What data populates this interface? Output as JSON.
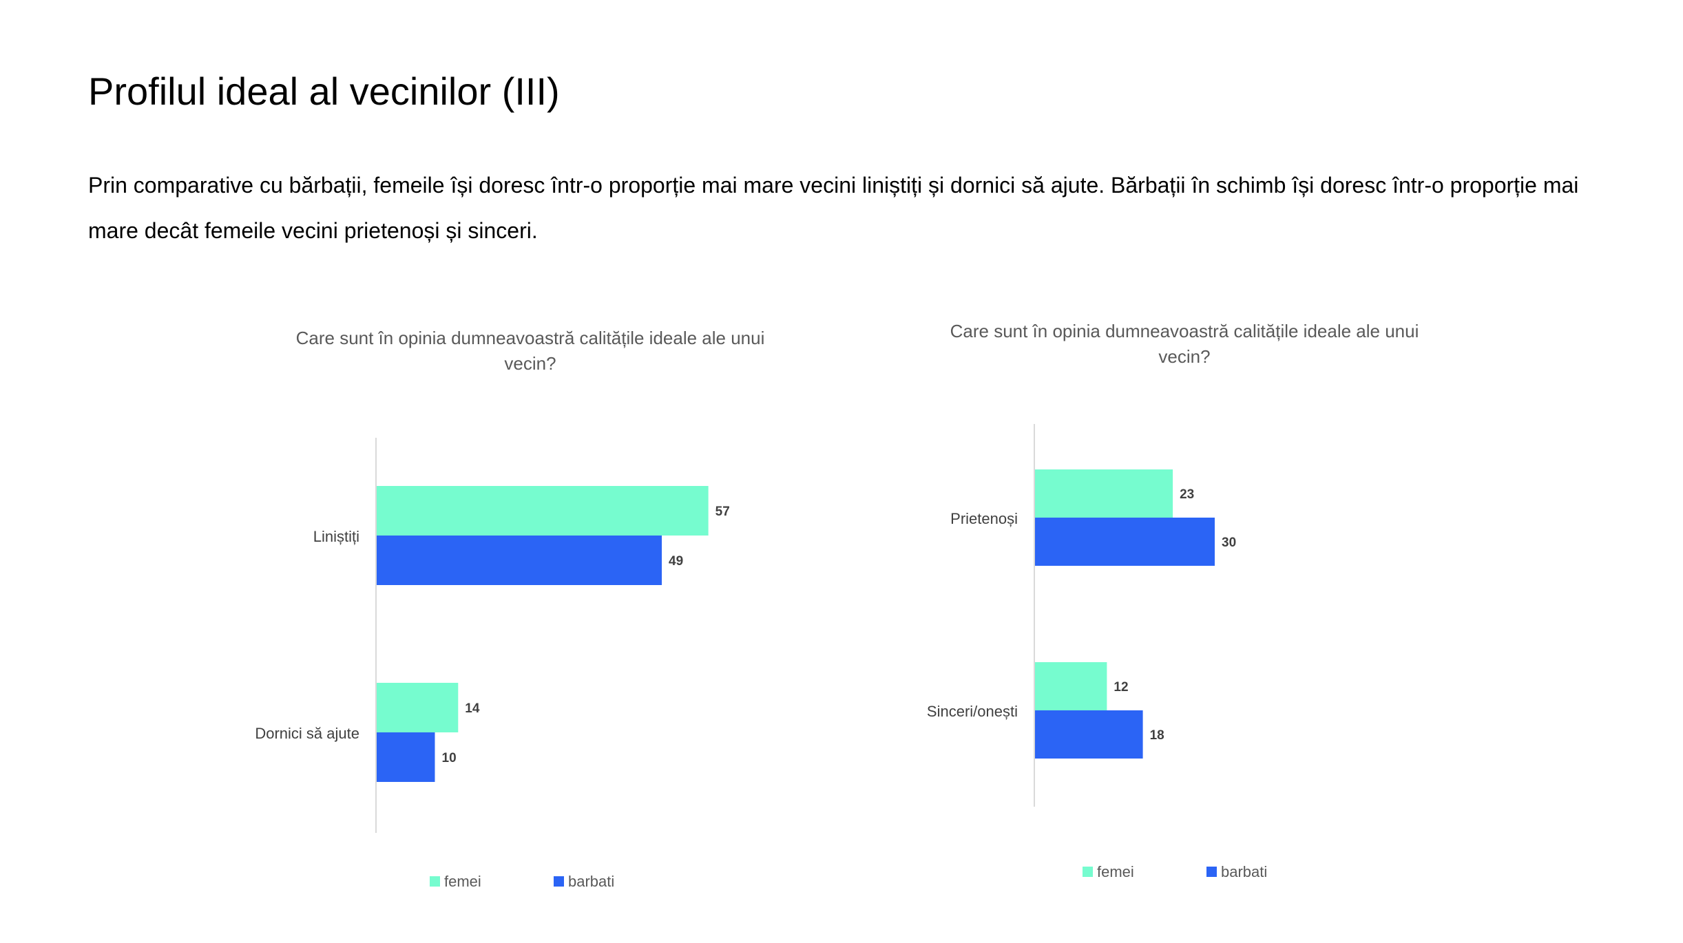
{
  "slide": {
    "title": "Profilul ideal al vecinilor (III)",
    "body": "Prin comparative cu bărbații, femeile își doresc într-o proporție mai mare vecini liniștiți și dornici să ajute. Bărbații în schimb își doresc într-o proporție mai mare decât femeile vecini prietenoși și sinceri."
  },
  "colors": {
    "femei": "#76FCCF",
    "barbati": "#2B64F5",
    "axis": "#D9D9D9",
    "title_text": "#595959",
    "label_text": "#404040"
  },
  "chart_data": [
    {
      "type": "bar",
      "orientation": "horizontal",
      "title": "Care sunt în opinia dumneavoastră calitățile ideale ale unui vecin?",
      "title_lines": [
        "Care sunt în opinia dumneavoastră calitățile ideale ale unui",
        "vecin?"
      ],
      "categories": [
        "Liniștiți",
        "Dornici să ajute"
      ],
      "series": [
        {
          "name": "femei",
          "values": [
            57,
            14
          ]
        },
        {
          "name": "barbati",
          "values": [
            49,
            10
          ]
        }
      ],
      "data_labels": true,
      "legend": "bottom",
      "xlim": [
        0,
        60
      ]
    },
    {
      "type": "bar",
      "orientation": "horizontal",
      "title": "Care sunt în opinia dumneavoastră calitățile ideale ale unui vecin?",
      "title_lines": [
        "Care sunt în opinia dumneavoastră calitățile ideale ale unui",
        "vecin?"
      ],
      "categories": [
        "Prietenoși",
        "Sinceri/onești"
      ],
      "series": [
        {
          "name": "femei",
          "values": [
            23,
            12
          ]
        },
        {
          "name": "barbati",
          "values": [
            30,
            18
          ]
        }
      ],
      "data_labels": true,
      "legend": "bottom",
      "xlim": [
        0,
        60
      ]
    }
  ]
}
